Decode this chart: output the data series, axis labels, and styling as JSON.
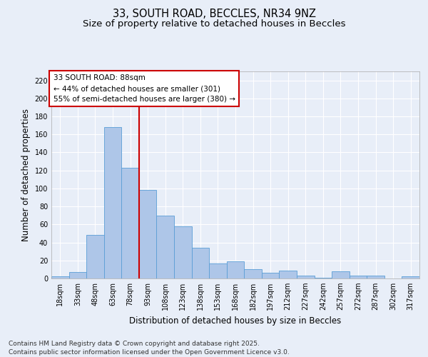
{
  "title_line1": "33, SOUTH ROAD, BECCLES, NR34 9NZ",
  "title_line2": "Size of property relative to detached houses in Beccles",
  "xlabel": "Distribution of detached houses by size in Beccles",
  "ylabel": "Number of detached properties",
  "categories": [
    "18sqm",
    "33sqm",
    "48sqm",
    "63sqm",
    "78sqm",
    "93sqm",
    "108sqm",
    "123sqm",
    "138sqm",
    "153sqm",
    "168sqm",
    "182sqm",
    "197sqm",
    "212sqm",
    "227sqm",
    "242sqm",
    "257sqm",
    "272sqm",
    "287sqm",
    "302sqm",
    "317sqm"
  ],
  "values": [
    2,
    7,
    48,
    168,
    123,
    98,
    70,
    58,
    34,
    17,
    19,
    10,
    6,
    9,
    3,
    1,
    8,
    3,
    3,
    0,
    2
  ],
  "bar_color": "#aec6e8",
  "bar_edge_color": "#5a9ed6",
  "ylim": [
    0,
    230
  ],
  "yticks": [
    0,
    20,
    40,
    60,
    80,
    100,
    120,
    140,
    160,
    180,
    200,
    220
  ],
  "vline_x": 4.5,
  "vline_color": "#cc0000",
  "annotation_text": "33 SOUTH ROAD: 88sqm\n← 44% of detached houses are smaller (301)\n55% of semi-detached houses are larger (380) →",
  "footer_text": "Contains HM Land Registry data © Crown copyright and database right 2025.\nContains public sector information licensed under the Open Government Licence v3.0.",
  "background_color": "#e8eef8",
  "plot_background": "#e8eef8",
  "title_fontsize": 10.5,
  "subtitle_fontsize": 9.5,
  "axis_label_fontsize": 8.5,
  "tick_fontsize": 7,
  "annotation_fontsize": 7.5,
  "footer_fontsize": 6.5
}
